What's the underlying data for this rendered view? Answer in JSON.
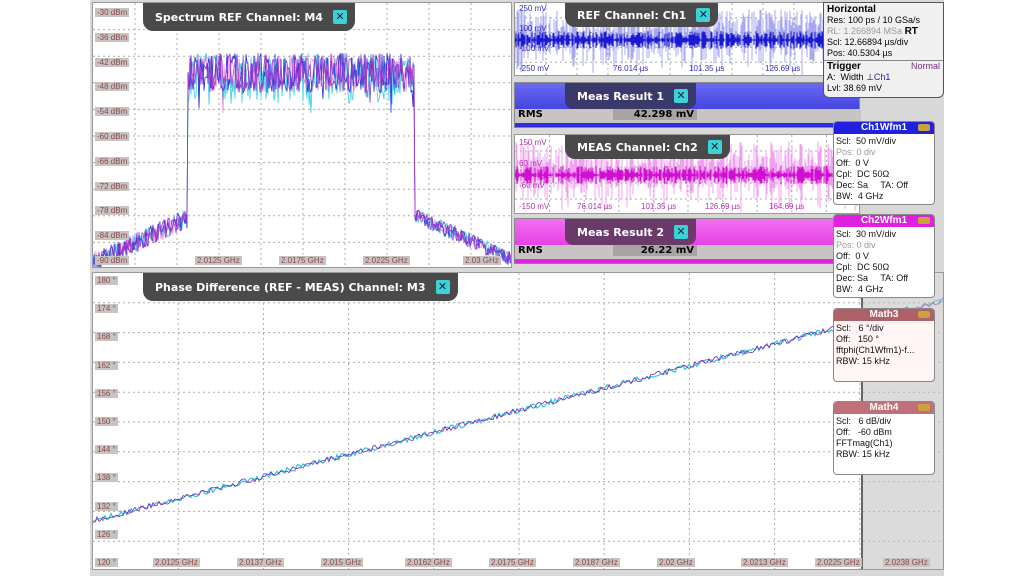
{
  "spectrum": {
    "title": "Spectrum REF Channel: M4",
    "y_ticks": [
      "-30 dBm",
      "-36 dBm",
      "-42 dBm",
      "-48 dBm",
      "-54 dBm",
      "-60 dBm",
      "-66 dBm",
      "-72 dBm",
      "-78 dBm",
      "-84 dBm",
      "-90 dBm"
    ],
    "x_ticks": [
      "2.0125 GHz",
      "2.0175 GHz",
      "2.0225 GHz",
      "2.03 GHz"
    ]
  },
  "ch1": {
    "title": "REF Channel: Ch1",
    "y_ticks": [
      "250 mV",
      "100 mV",
      "-100 mV",
      "-250 mV"
    ],
    "x_ticks": [
      "76.014 µs",
      "101.35 µs",
      "126.69 µs"
    ],
    "color": "#2020d0"
  },
  "meas1": {
    "title": "Meas Result 1",
    "label": "RMS",
    "value": "42.298 mV",
    "color": "#3030e0"
  },
  "ch2": {
    "title": "MEAS Channel: Ch2",
    "y_ticks": [
      "150 mV",
      "60 mV",
      "-60 mV",
      "-150 mV"
    ],
    "x_ticks": [
      "76.014 µs",
      "101.35 µs",
      "126.69 µs",
      "164.69 µs"
    ],
    "color": "#e020e0"
  },
  "meas2": {
    "title": "Meas Result 2",
    "label": "RMS",
    "value": "26.22 mV",
    "color": "#e030e0"
  },
  "phase": {
    "title": "Phase Difference (REF - MEAS) Channel: M3"
  },
  "horizontal": {
    "title": "Horizontal",
    "res": "Res: 100 ps / 10 GSa/s",
    "rl": "RL:  1.266894 MSa",
    "rt": "RT",
    "scl": "Scl:  12.66894 µs/div",
    "pos": "Pos: 40.5304 µs",
    "trigger": "Trigger",
    "mode": "Normal",
    "a_label": "A:",
    "a_type": "Width",
    "a_src": "Ch1",
    "lvl": "Lvl:  38.69 mV"
  },
  "ch1wfm": {
    "title": "Ch1Wfm1",
    "lines": [
      "Scl:  50 mV/div",
      "Pos: 0 div",
      "Off:  0 V",
      "Cpl:  DC 50Ω",
      "Dec: Sa     TA: Off",
      "BW:  4 GHz"
    ],
    "color": "#2020e0"
  },
  "ch2wfm": {
    "title": "Ch2Wfm1",
    "lines": [
      "Scl:  30 mV/div",
      "Pos: 0 div",
      "Off:  0 V",
      "Cpl:  DC 50Ω",
      "Dec: Sa     TA: Off",
      "BW:  4 GHz"
    ],
    "color": "#e020e0"
  },
  "math3": {
    "title": "Math3",
    "lines": [
      "Scl:   6 °/div",
      "Off:   150 °",
      "fftphi(Ch1Wfm1)-f...",
      "RBW: 15 kHz"
    ],
    "color": "#b06068"
  },
  "math4": {
    "title": "Math4",
    "lines": [
      "Scl:   6 dB/div",
      "Off:   -60 dBm",
      "FFTmag(Ch1)",
      "RBW: 15 kHz"
    ],
    "color": "#c07078"
  },
  "chart_data": {
    "type": "line",
    "title": "Phase Difference (REF - MEAS) Channel: M3",
    "y_ticks": [
      "180 °",
      "174 °",
      "168 °",
      "162 °",
      "156 °",
      "150 °",
      "144 °",
      "138 °",
      "132 °",
      "126 °",
      "120 °"
    ],
    "x_ticks": [
      "2.0125 GHz",
      "2.0137 GHz",
      "2.015 GHz",
      "2.0162 GHz",
      "2.0175 GHz",
      "2.0187 GHz",
      "2.02 GHz",
      "2.0213 GHz",
      "2.0225 GHz",
      "2.0238 GHz"
    ],
    "ylim": [
      120,
      180
    ],
    "x": [
      2.0115,
      2.0238
    ],
    "y": [
      129,
      176
    ],
    "colors": [
      "#30c8d0",
      "#8020c0"
    ]
  }
}
